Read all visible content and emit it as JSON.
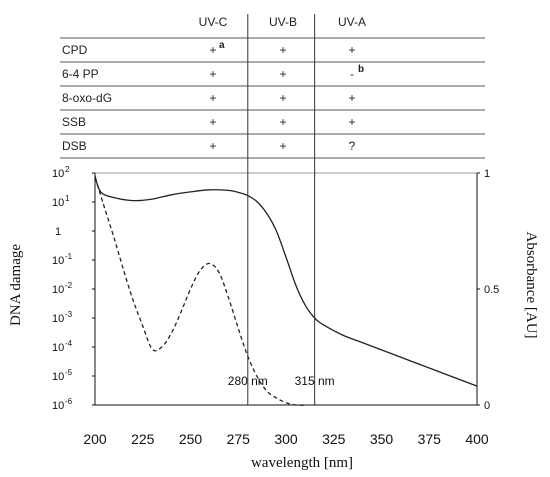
{
  "table": {
    "columns": [
      "UV-C",
      "UV-B",
      "UV-A"
    ],
    "rows": [
      {
        "name": "CPD",
        "cells": [
          "+",
          "+",
          "+"
        ],
        "notes": [
          "a",
          "",
          ""
        ]
      },
      {
        "name": "6-4 PP",
        "cells": [
          "+",
          "+",
          "-"
        ],
        "notes": [
          "",
          "",
          "b"
        ]
      },
      {
        "name": "8-oxo-dG",
        "cells": [
          "+",
          "+",
          "+"
        ],
        "notes": [
          "",
          "",
          ""
        ]
      },
      {
        "name": "SSB",
        "cells": [
          "+",
          "+",
          "+"
        ],
        "notes": [
          "",
          "",
          ""
        ]
      },
      {
        "name": "DSB",
        "cells": [
          "+",
          "+",
          "?"
        ],
        "notes": [
          "",
          "",
          ""
        ]
      }
    ]
  },
  "chart_data": {
    "type": "line",
    "xlabel": "wavelength [nm]",
    "ylabel_left": "DNA damage",
    "ylabel_right": "Absorbance [AU]",
    "xlim": [
      200,
      400
    ],
    "xticks": [
      200,
      225,
      250,
      275,
      300,
      325,
      350,
      375,
      400
    ],
    "yleft_exponents": [
      2,
      1,
      0,
      -1,
      -2,
      -3,
      -4,
      -5,
      -6
    ],
    "yleft_labels": [
      "10",
      "10",
      "1",
      "10",
      "10",
      "10",
      "10",
      "10",
      "10"
    ],
    "yleft_range_log": [
      -6,
      2
    ],
    "yright_range": [
      0,
      1
    ],
    "yright_ticks": [
      {
        "value": 1,
        "label": "1"
      },
      {
        "value": 0.5,
        "label": "0.5"
      },
      {
        "value": 0,
        "label": "0"
      }
    ],
    "markers": [
      {
        "x": 280,
        "label": "280 nm"
      },
      {
        "x": 315,
        "label": "315 nm"
      }
    ],
    "series": [
      {
        "style": "solid",
        "axis": "left",
        "x": [
          200,
          203,
          210,
          220,
          230,
          240,
          250,
          260,
          270,
          275,
          280,
          285,
          290,
          295,
          300,
          305,
          310,
          315,
          320,
          330,
          340,
          350,
          360,
          370,
          380,
          390,
          400
        ],
        "y_log10": [
          1.9,
          1.35,
          1.15,
          1.05,
          1.1,
          1.25,
          1.35,
          1.42,
          1.4,
          1.33,
          1.22,
          1.0,
          0.6,
          0.0,
          -0.9,
          -1.85,
          -2.55,
          -3.0,
          -3.25,
          -3.6,
          -3.85,
          -4.1,
          -4.35,
          -4.6,
          -4.85,
          -5.1,
          -5.35
        ]
      },
      {
        "style": "dashed",
        "axis": "right",
        "x": [
          200,
          202,
          205,
          210,
          215,
          220,
          225,
          230,
          235,
          240,
          245,
          250,
          255,
          260,
          265,
          270,
          275,
          280,
          285,
          290,
          295,
          300,
          305,
          310
        ],
        "y": [
          0.98,
          0.93,
          0.85,
          0.72,
          0.58,
          0.45,
          0.34,
          0.24,
          0.25,
          0.31,
          0.4,
          0.5,
          0.58,
          0.61,
          0.57,
          0.46,
          0.33,
          0.21,
          0.12,
          0.06,
          0.03,
          0.01,
          0.0,
          0.0
        ]
      }
    ]
  }
}
